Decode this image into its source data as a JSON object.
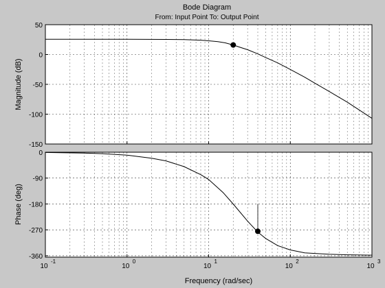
{
  "chart_data": {
    "type": "line",
    "title": "Bode Diagram",
    "subtitle": "From: Input Point  To: Output Point",
    "xlabel": "Frequency  (rad/sec)",
    "x_scale": "log",
    "xlim": [
      0.1,
      1000
    ],
    "x_ticks": [
      {
        "label": "10",
        "exp": "-1"
      },
      {
        "label": "10",
        "exp": "0"
      },
      {
        "label": "10",
        "exp": "1"
      },
      {
        "label": "10",
        "exp": "2"
      },
      {
        "label": "10",
        "exp": "3"
      }
    ],
    "grid": true,
    "panels": [
      {
        "ylabel": "Magnitude (dB)",
        "ylim": [
          -150,
          50
        ],
        "y_ticks": [
          "50",
          "0",
          "-50",
          "-100",
          "-150"
        ],
        "y_tick_values": [
          50,
          0,
          -50,
          -100,
          -150
        ],
        "series": [
          {
            "x": [
              0.1,
              1,
              3,
              5,
              8,
              10,
              13,
              16,
              20,
              25,
              30,
              40,
              50,
              70,
              100,
              150,
              200,
              300,
              500,
              700,
              1000
            ],
            "y": [
              25.5,
              25.5,
              25.3,
              25,
              24,
              23,
              21.5,
              19.5,
              16,
              11.5,
              8,
              1,
              -5,
              -14,
              -25,
              -38,
              -48,
              -62,
              -80,
              -93,
              -107
            ]
          }
        ],
        "marker": {
          "x": 20,
          "y": 16
        }
      },
      {
        "ylabel": "Phase (deg)",
        "ylim": [
          -365,
          0
        ],
        "y_ticks": [
          "0",
          "-90",
          "-180",
          "-270",
          "-360"
        ],
        "y_tick_values": [
          0,
          -90,
          -180,
          -270,
          -360
        ],
        "series": [
          {
            "x": [
              0.1,
              0.3,
              0.5,
              1,
              2,
              3,
              5,
              8,
              10,
              15,
              20,
              30,
              40,
              50,
              70,
              100,
              150,
              200,
              300,
              500,
              1000
            ],
            "y": [
              -1,
              -3,
              -5,
              -10,
              -21,
              -30,
              -50,
              -78,
              -95,
              -140,
              -180,
              -240,
              -278,
              -300,
              -325,
              -340,
              -350,
              -352,
              -355,
              -357,
              -358
            ]
          }
        ],
        "marker": {
          "x": 40,
          "y": -275
        }
      }
    ]
  }
}
